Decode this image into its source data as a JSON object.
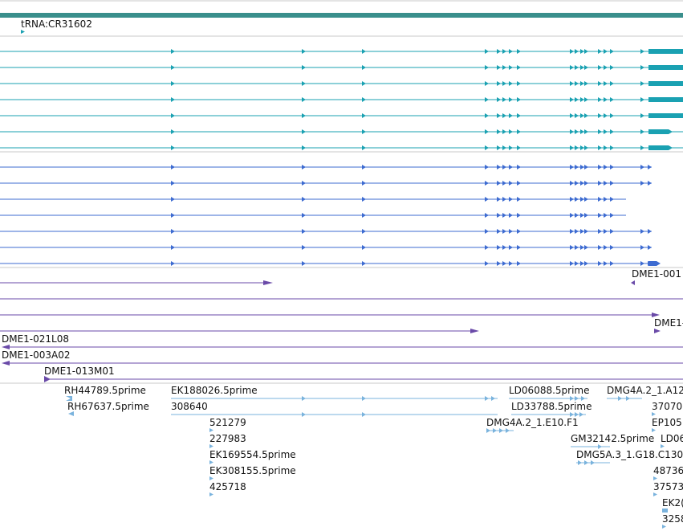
{
  "colors": {
    "gene": "#1aa1b2",
    "mrna": "#3d6bd1",
    "clone": "#6a4aa8",
    "est": "#7ab3dd",
    "ruler": "#3a8f8c",
    "divider": "#c8c8c8",
    "text": "#111111"
  },
  "tracks": {
    "trna": {
      "labels": [
        "tRNA:CR31602"
      ]
    },
    "clones": {
      "labels": [
        "DME1-001",
        "DME1-",
        "DME1-021L08",
        "DME1-003A02",
        "DME1-013M01"
      ]
    },
    "est": {
      "labels": [
        "RH44789.5prime",
        "RH67637.5prime",
        "EK188026.5prime",
        "308640",
        "521279",
        "227983",
        "EK169554.5prime",
        "EK308155.5prime",
        "425718",
        "LD06088.5prime",
        "LD33788.5prime",
        "DMG4A.2_1.E10.F1",
        "DMG4A.2_1.A12",
        "37070",
        "EP105",
        "LD06",
        "GM32142.5prime",
        "DMG5A.3_1.G18.C130",
        "48736",
        "37573",
        "EK2(",
        "3258"
      ]
    }
  }
}
